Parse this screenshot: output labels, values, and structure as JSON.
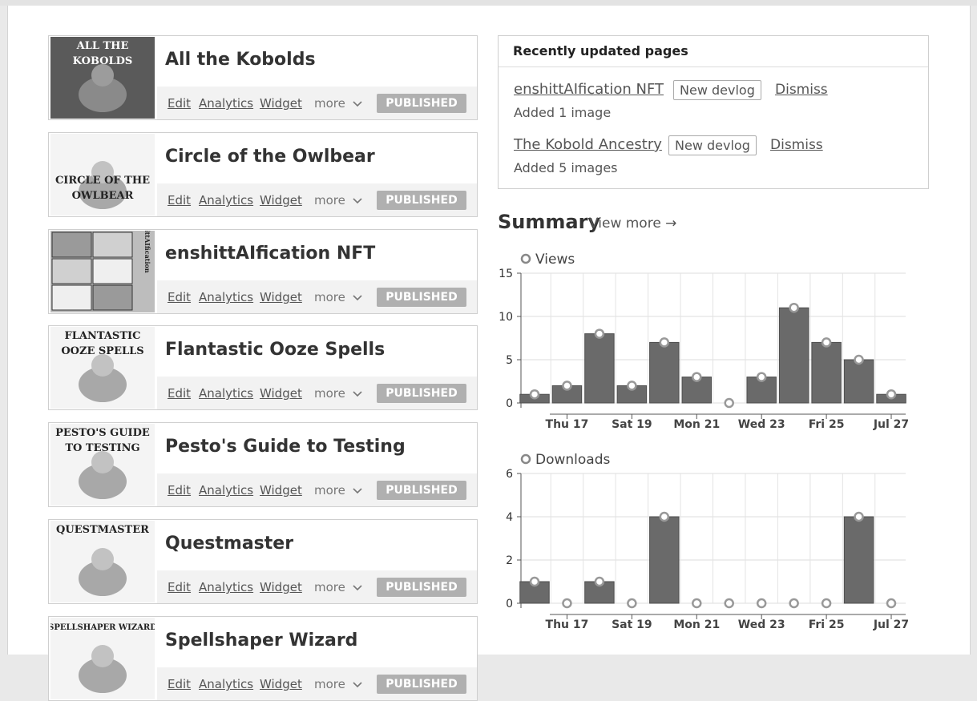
{
  "games": [
    {
      "title": "All the Kobolds",
      "cover_text": [
        "ALL THE",
        "KOBOLDS"
      ],
      "status": "PUBLISHED"
    },
    {
      "title": "Circle of the Owlbear",
      "cover_text": [
        "CIRCLE OF THE",
        "OWLBEAR"
      ],
      "status": "PUBLISHED"
    },
    {
      "title": "enshittAIfication NFT",
      "cover_text": [
        "enshittAIfication"
      ],
      "status": "PUBLISHED"
    },
    {
      "title": "Flantastic Ooze Spells",
      "cover_text": [
        "FLANTASTIC",
        "OOZE SPELLS"
      ],
      "status": "PUBLISHED"
    },
    {
      "title": "Pesto's Guide to Testing",
      "cover_text": [
        "PESTO'S GUIDE",
        "TO TESTING"
      ],
      "status": "PUBLISHED"
    },
    {
      "title": "Questmaster",
      "cover_text": [
        "QUESTMASTER"
      ],
      "status": "PUBLISHED"
    },
    {
      "title": "Spellshaper Wizard",
      "cover_text": [
        "SPELLSHAPER WIZARD"
      ],
      "status": "PUBLISHED"
    }
  ],
  "actions": {
    "edit": "Edit",
    "analytics": "Analytics",
    "widget": "Widget",
    "more": "more"
  },
  "recent": {
    "title": "Recently updated pages",
    "items": [
      {
        "name": "enshittAIfication NFT",
        "button": "New devlog",
        "dismiss": "Dismiss",
        "note": "Added 1 image"
      },
      {
        "name": "The Kobold Ancestry",
        "button": "New devlog",
        "dismiss": "Dismiss",
        "note": "Added 5 images"
      }
    ]
  },
  "summary": {
    "title": "Summary",
    "view_more": "View more →"
  },
  "chart_data": [
    {
      "type": "bar",
      "title": "Views",
      "x": [
        "Jul 16",
        "Jul 17",
        "Jul 18",
        "Jul 19",
        "Jul 20",
        "Jul 21",
        "Jul 22",
        "Jul 23",
        "Jul 24",
        "Jul 25",
        "Jul 26",
        "Jul 27"
      ],
      "xtick_labels": [
        "Thu 17",
        "Sat 19",
        "Mon 21",
        "Wed 23",
        "Fri 25",
        "Jul 27"
      ],
      "values": [
        1,
        2,
        8,
        2,
        7,
        3,
        0,
        3,
        11,
        7,
        5,
        1
      ],
      "ylim": [
        0,
        15
      ],
      "yticks": [
        0,
        5,
        10,
        15
      ],
      "grid": true
    },
    {
      "type": "bar",
      "title": "Downloads",
      "x": [
        "Jul 16",
        "Jul 17",
        "Jul 18",
        "Jul 19",
        "Jul 20",
        "Jul 21",
        "Jul 22",
        "Jul 23",
        "Jul 24",
        "Jul 25",
        "Jul 26",
        "Jul 27"
      ],
      "xtick_labels": [
        "Thu 17",
        "Sat 19",
        "Mon 21",
        "Wed 23",
        "Fri 25",
        "Jul 27"
      ],
      "values": [
        1,
        0,
        1,
        0,
        4,
        0,
        0,
        0,
        0,
        0,
        4,
        0
      ],
      "ylim": [
        0,
        6
      ],
      "yticks": [
        0,
        2,
        4,
        6
      ],
      "grid": true
    }
  ],
  "colors": {
    "bar": "#6a6a6a",
    "bar_dark": "#4e4e4e",
    "badge": "#b0b0b0",
    "grid": "#dddddd"
  }
}
